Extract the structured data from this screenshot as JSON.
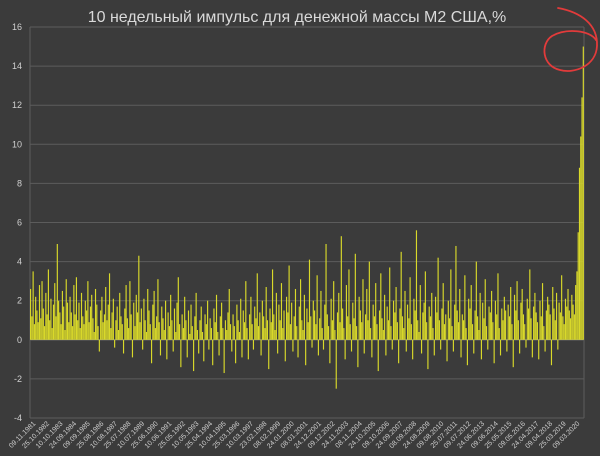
{
  "chart_data": {
    "type": "bar",
    "title": "10 недельный импульс для денежной массы М2 США,%",
    "xlabel": "",
    "ylabel": "",
    "ylim": [
      -4,
      16
    ],
    "y_ticks": [
      -4,
      -2,
      0,
      2,
      4,
      6,
      8,
      10,
      12,
      14,
      16
    ],
    "grid": true,
    "legend": "none",
    "x_tick_labels": [
      "09.11.1981",
      "25.10.1982",
      "10.10.1983",
      "24.09.1984",
      "09.09.1985",
      "25.08.1986",
      "10.08.1987",
      "25.07.1988",
      "10.07.1989",
      "25.06.1990",
      "10.06.1991",
      "25.05.1992",
      "10.05.1993",
      "25.04.1994",
      "10.04.1995",
      "25.03.1996",
      "10.03.1997",
      "23.02.1998",
      "08.02.1999",
      "24.01.2000",
      "08.01.2001",
      "24.12.2001",
      "09.12.2002",
      "24.11.2003",
      "08.11.2004",
      "24.10.2005",
      "09.10.2006",
      "24.09.2007",
      "08.09.2008",
      "24.08.2009",
      "09.08.2010",
      "25.07.2011",
      "09.07.2012",
      "24.06.2013",
      "09.06.2014",
      "25.05.2015",
      "09.05.2016",
      "24.04.2017",
      "09.04.2018",
      "25.03.2019",
      "09.03.2020"
    ],
    "series": [
      {
        "values": [
          2.6,
          1.2,
          3.5,
          0.8,
          2.2,
          1.5,
          0.9,
          2.8,
          1.1,
          3.0,
          1.6,
          0.7,
          2.4,
          1.3,
          3.6,
          1.0,
          2.1,
          0.6,
          1.8,
          2.9,
          1.2,
          4.9,
          2.0,
          1.4,
          0.8,
          2.5,
          1.7,
          0.5,
          3.1,
          1.9,
          0.9,
          2.2,
          1.4,
          0.7,
          2.8,
          1.3,
          3.2,
          1.0,
          1.9,
          0.6,
          2.4,
          1.2,
          0.8,
          2.0,
          1.5,
          3.0,
          0.9,
          1.7,
          2.3,
          1.1,
          0.4,
          2.6,
          1.8,
          0.7,
          -0.6,
          1.5,
          2.2,
          0.9,
          1.3,
          2.7,
          1.0,
          1.8,
          3.4,
          0.6,
          1.4,
          2.1,
          -0.4,
          1.0,
          1.7,
          0.5,
          2.4,
          1.2,
          0.8,
          -0.7,
          1.6,
          2.8,
          1.1,
          0.6,
          3.0,
          1.3,
          -0.9,
          1.9,
          0.7,
          2.3,
          1.4,
          4.3,
          0.9,
          1.6,
          -0.5,
          2.1,
          1.0,
          0.4,
          2.6,
          1.5,
          0.8,
          -1.2,
          1.8,
          2.5,
          0.6,
          1.2,
          3.1,
          0.9,
          -0.8,
          1.7,
          1.1,
          0.5,
          2.0,
          -1.0,
          1.4,
          0.7,
          2.3,
          1.0,
          -0.6,
          1.6,
          0.4,
          1.9,
          3.2,
          0.8,
          -1.4,
          1.3,
          0.6,
          2.2,
          1.0,
          -0.9,
          1.5,
          0.3,
          1.8,
          0.7,
          -1.6,
          1.2,
          2.4,
          0.5,
          -0.7,
          1.0,
          1.7,
          0.4,
          -1.1,
          1.3,
          0.8,
          2.0,
          -0.5,
          1.1,
          0.6,
          -1.3,
          1.6,
          0.9,
          2.3,
          0.4,
          -0.8,
          1.2,
          1.9,
          0.6,
          -1.7,
          1.0,
          0.5,
          1.4,
          2.6,
          0.8,
          -0.6,
          1.3,
          0.7,
          -1.2,
          1.8,
          1.0,
          0.4,
          2.1,
          -0.9,
          1.5,
          0.9,
          3.0,
          0.6,
          -1.0,
          1.3,
          2.2,
          0.8,
          -0.5,
          1.7,
          1.1,
          3.4,
          0.7,
          1.4,
          -0.8,
          2.0,
          1.2,
          0.6,
          2.7,
          1.0,
          -1.5,
          1.6,
          0.9,
          3.6,
          1.3,
          0.5,
          2.4,
          -0.7,
          1.8,
          1.0,
          2.9,
          0.6,
          1.5,
          -1.1,
          2.2,
          1.4,
          3.8,
          0.8,
          1.9,
          -0.6,
          1.2,
          2.6,
          0.7,
          -0.9,
          1.7,
          3.1,
          1.0,
          0.5,
          2.3,
          -1.3,
          1.6,
          0.9,
          4.1,
          1.2,
          -0.4,
          2.0,
          1.5,
          0.8,
          3.3,
          -0.8,
          1.1,
          2.5,
          0.6,
          -0.5,
          1.8,
          4.9,
          1.3,
          0.7,
          -1.2,
          2.1,
          1.0,
          3.0,
          0.5,
          -2.5,
          1.4,
          2.4,
          0.9,
          5.3,
          1.6,
          0.6,
          -1.0,
          2.8,
          1.2,
          3.6,
          0.8,
          -0.6,
          1.9,
          1.1,
          4.4,
          0.7,
          -1.4,
          2.2,
          1.5,
          0.9,
          3.1,
          -0.7,
          1.3,
          2.6,
          1.0,
          4.0,
          0.6,
          -0.9,
          1.8,
          1.2,
          2.9,
          0.8,
          -1.6,
          1.5,
          3.4,
          1.1,
          0.5,
          2.3,
          -0.8,
          1.7,
          1.0,
          3.7,
          0.7,
          -0.5,
          2.0,
          1.4,
          2.7,
          0.9,
          -1.2,
          1.6,
          4.5,
          1.2,
          0.6,
          2.5,
          -0.6,
          1.8,
          1.1,
          3.2,
          0.8,
          -1.0,
          2.1,
          1.5,
          5.6,
          1.0,
          0.4,
          2.8,
          -0.7,
          1.4,
          1.9,
          3.5,
          0.9,
          -1.5,
          1.7,
          1.2,
          2.4,
          0.6,
          -0.8,
          2.2,
          1.4,
          4.2,
          1.0,
          -0.5,
          1.6,
          2.9,
          0.8,
          1.3,
          -1.1,
          2.0,
          1.1,
          3.6,
          0.7,
          -0.6,
          1.8,
          4.8,
          1.5,
          0.9,
          2.6,
          -0.9,
          1.3,
          1.0,
          3.3,
          0.6,
          -1.3,
          2.1,
          1.6,
          2.8,
          0.8,
          -0.7,
          1.5,
          4.0,
          1.2,
          0.5,
          2.4,
          -1.0,
          1.9,
          1.1,
          3.1,
          0.7,
          -0.5,
          1.7,
          1.4,
          2.5,
          0.9,
          -1.2,
          2.0,
          1.3,
          3.4,
          0.6,
          -0.8,
          1.6,
          1.0,
          2.2,
          1.5,
          -0.6,
          1.8,
          1.2,
          2.7,
          0.8,
          -1.4,
          2.3,
          1.5,
          3.0,
          1.0,
          -0.7,
          1.9,
          2.6,
          1.3,
          0.8,
          -0.4,
          2.1,
          1.6,
          3.6,
          1.1,
          -0.9,
          1.7,
          2.4,
          1.4,
          0.9,
          -1.0,
          2.0,
          1.2,
          2.9,
          0.7,
          -0.6,
          1.5,
          2.2,
          1.8,
          1.3,
          -1.3,
          2.7,
          1.6,
          1.0,
          2.4,
          -0.5,
          1.9,
          1.4,
          3.3,
          1.2,
          0.8,
          2.1,
          1.7,
          2.6,
          1.5,
          1.1,
          2.3,
          1.8,
          1.3,
          2.8,
          3.5,
          5.5,
          8.8,
          10.4,
          12.4,
          15.0
        ]
      }
    ]
  }
}
